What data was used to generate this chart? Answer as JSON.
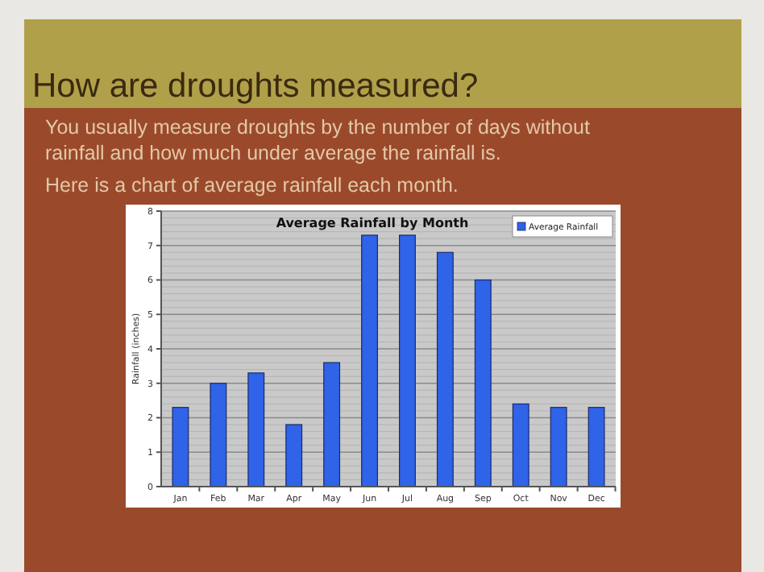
{
  "chart_data": {
    "type": "bar",
    "title": "Average Rainfall by Month",
    "ylabel": "Rainfall (inches)",
    "annotations": [
      "How are droughts measured?",
      "You usually measure droughts by the number of days without rainfall and how much under average the rainfall is.",
      "Here is a chart of average rainfall each month."
    ],
    "categories": [
      "Jan",
      "Feb",
      "Mar",
      "Apr",
      "May",
      "Jun",
      "Jul",
      "Aug",
      "Sep",
      "Oct",
      "Nov",
      "Dec"
    ],
    "series": [
      {
        "name": "Average Rainfall",
        "color": "#2f63e8",
        "values": [
          2.3,
          3.0,
          3.3,
          1.8,
          3.6,
          7.3,
          7.3,
          6.8,
          6.0,
          2.4,
          2.3,
          2.3
        ]
      }
    ],
    "ylim": [
      0,
      8
    ],
    "yticks": [
      0,
      1,
      2,
      3,
      4,
      5,
      6,
      7,
      8
    ],
    "grid": true,
    "legend": "top right"
  }
}
